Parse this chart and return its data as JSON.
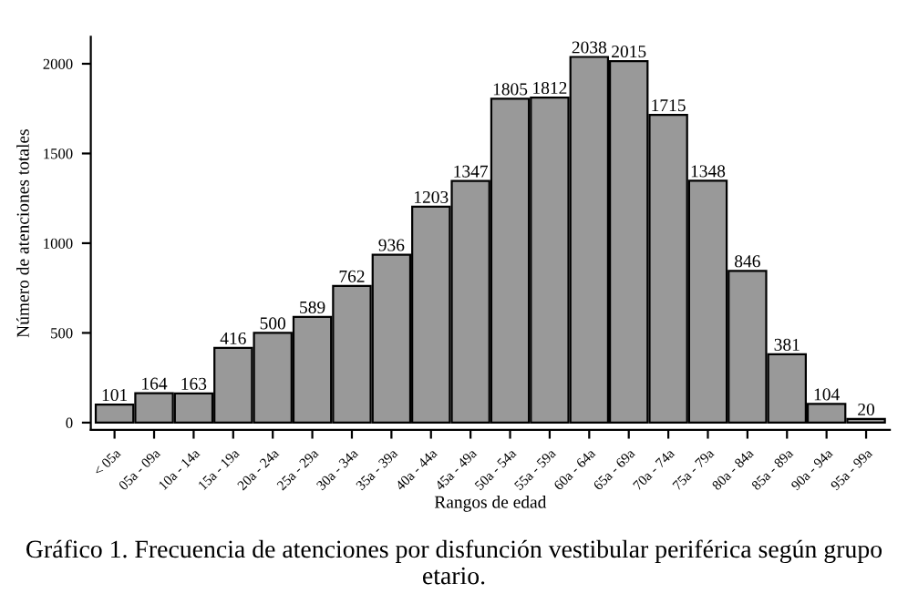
{
  "chart_data": {
    "type": "bar",
    "title": "Gráfico 1. Frecuencia de atenciones por disfunción vestibular periférica según grupo etario.",
    "xlabel": "Rangos de edad",
    "ylabel": "Número de atenciones totales",
    "categories": [
      "< 05a",
      "05a - 09a",
      "10a - 14a",
      "15a - 19a",
      "20a - 24a",
      "25a - 29a",
      "30a - 34a",
      "35a - 39a",
      "40a - 44a",
      "45a - 49a",
      "50a - 54a",
      "55a - 59a",
      "60a - 64a",
      "65a - 69a",
      "70a - 74a",
      "75a - 79a",
      "80a - 84a",
      "85a - 89a",
      "90a - 94a",
      "95a - 99a"
    ],
    "values": [
      101,
      164,
      163,
      416,
      500,
      589,
      762,
      936,
      1203,
      1347,
      1805,
      1812,
      2038,
      2015,
      1715,
      1348,
      846,
      381,
      104,
      20
    ],
    "color": "#999999",
    "ylim": [
      -40,
      2150
    ],
    "yticks": [
      0,
      500,
      1000,
      1500,
      2000
    ],
    "data_labels": true,
    "grid": false,
    "legend": false
  }
}
